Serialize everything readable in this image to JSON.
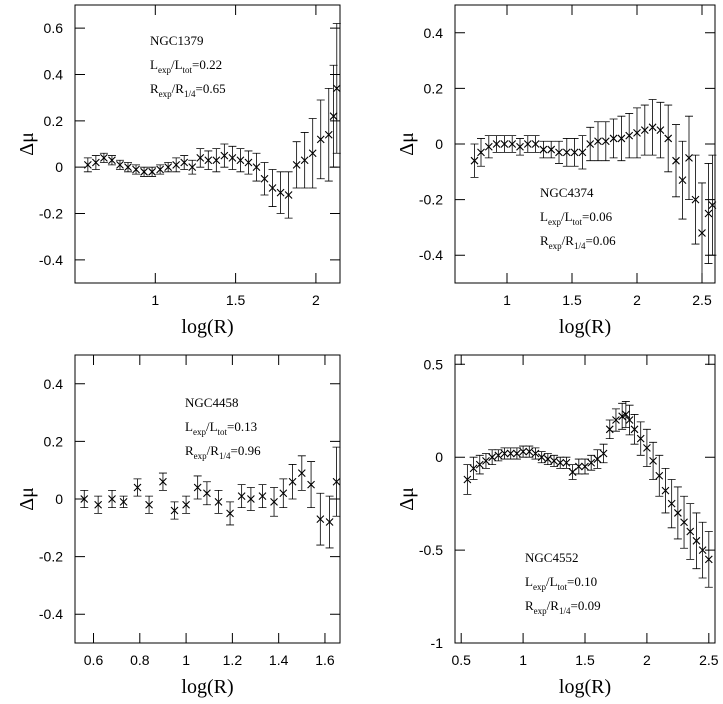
{
  "chart_data": [
    {
      "type": "scatter",
      "xlabel": "log(R)",
      "ylabel": "Δμ",
      "annotations": [
        [
          "NGC1379"
        ],
        [
          "L",
          "exp",
          "/L",
          "tot",
          "=0.22"
        ],
        [
          "R",
          "exp",
          "/R",
          "1/4",
          "=0.65"
        ]
      ],
      "xlim": [
        0.5,
        2.15
      ],
      "ylim": [
        -0.5,
        0.7
      ],
      "xticks": [
        1,
        1.5,
        2
      ],
      "yticks": [
        -0.4,
        -0.2,
        0,
        0.2,
        0.4,
        0.6
      ],
      "x": [
        0.58,
        0.63,
        0.68,
        0.73,
        0.78,
        0.83,
        0.88,
        0.93,
        0.98,
        1.03,
        1.08,
        1.13,
        1.18,
        1.23,
        1.28,
        1.33,
        1.38,
        1.43,
        1.48,
        1.53,
        1.58,
        1.63,
        1.68,
        1.73,
        1.78,
        1.83,
        1.88,
        1.93,
        1.98,
        2.03,
        2.08,
        2.11,
        2.13
      ],
      "series": [
        {
          "color": "#000000",
          "values": [
            0.01,
            0.02,
            0.04,
            0.03,
            0.01,
            0.0,
            -0.01,
            -0.02,
            -0.02,
            -0.01,
            0.0,
            0.01,
            0.02,
            0.0,
            0.04,
            0.03,
            0.03,
            0.05,
            0.04,
            0.03,
            0.02,
            0.0,
            -0.05,
            -0.09,
            -0.11,
            -0.12,
            0.01,
            0.03,
            0.06,
            0.12,
            0.14,
            0.22,
            0.34
          ],
          "errors": [
            0.03,
            0.03,
            0.02,
            0.02,
            0.02,
            0.02,
            0.02,
            0.02,
            0.02,
            0.02,
            0.02,
            0.03,
            0.03,
            0.03,
            0.04,
            0.04,
            0.05,
            0.05,
            0.05,
            0.05,
            0.05,
            0.06,
            0.07,
            0.08,
            0.09,
            0.1,
            0.1,
            0.12,
            0.15,
            0.17,
            0.2,
            0.22,
            0.28
          ]
        }
      ]
    },
    {
      "type": "scatter",
      "xlabel": "log(R)",
      "ylabel": "Δμ",
      "annotations": [
        [
          "NGC4374"
        ],
        [
          "L",
          "exp",
          "/L",
          "tot",
          "=0.06"
        ],
        [
          "R",
          "exp",
          "/R",
          "1/4",
          "=0.06"
        ]
      ],
      "xlim": [
        0.6,
        2.6
      ],
      "ylim": [
        -0.5,
        0.5
      ],
      "xticks": [
        1,
        1.5,
        2,
        2.5
      ],
      "yticks": [
        -0.4,
        -0.2,
        0,
        0.2,
        0.4
      ],
      "x": [
        0.75,
        0.8,
        0.86,
        0.92,
        0.98,
        1.04,
        1.1,
        1.16,
        1.22,
        1.28,
        1.34,
        1.4,
        1.46,
        1.52,
        1.58,
        1.64,
        1.7,
        1.76,
        1.82,
        1.88,
        1.94,
        2.0,
        2.06,
        2.12,
        2.18,
        2.24,
        2.3,
        2.35,
        2.4,
        2.45,
        2.5,
        2.55,
        2.58
      ],
      "series": [
        {
          "color": "#000000",
          "values": [
            -0.06,
            -0.03,
            -0.01,
            0.0,
            0.0,
            0.0,
            -0.01,
            0.0,
            0.0,
            -0.02,
            -0.02,
            -0.03,
            -0.03,
            -0.03,
            -0.03,
            0.0,
            0.01,
            0.01,
            0.02,
            0.02,
            0.03,
            0.04,
            0.05,
            0.06,
            0.05,
            0.02,
            -0.06,
            -0.13,
            -0.05,
            -0.2,
            -0.32,
            -0.25,
            -0.22
          ],
          "errors": [
            0.06,
            0.05,
            0.04,
            0.03,
            0.03,
            0.03,
            0.03,
            0.03,
            0.03,
            0.03,
            0.03,
            0.04,
            0.05,
            0.05,
            0.06,
            0.06,
            0.07,
            0.07,
            0.07,
            0.08,
            0.08,
            0.09,
            0.09,
            0.1,
            0.1,
            0.12,
            0.13,
            0.14,
            0.15,
            0.16,
            0.18,
            0.18,
            0.18
          ]
        }
      ]
    },
    {
      "type": "scatter",
      "xlabel": "log(R)",
      "ylabel": "Δμ",
      "annotations": [
        [
          "NGC4458"
        ],
        [
          "L",
          "exp",
          "/L",
          "tot",
          "=0.13"
        ],
        [
          "R",
          "exp",
          "/R",
          "1/4",
          "=0.96"
        ]
      ],
      "xlim": [
        0.52,
        1.665
      ],
      "ylim": [
        -0.5,
        0.5
      ],
      "xticks": [
        0.6,
        0.8,
        1,
        1.2,
        1.4,
        1.6
      ],
      "yticks": [
        -0.4,
        -0.2,
        0,
        0.2,
        0.4
      ],
      "x": [
        0.56,
        0.62,
        0.68,
        0.73,
        0.79,
        0.84,
        0.9,
        0.95,
        1.0,
        1.05,
        1.09,
        1.14,
        1.19,
        1.24,
        1.28,
        1.33,
        1.38,
        1.42,
        1.46,
        1.5,
        1.54,
        1.58,
        1.62,
        1.65
      ],
      "series": [
        {
          "color": "#000000",
          "values": [
            0.0,
            -0.02,
            0.0,
            -0.01,
            0.04,
            -0.02,
            0.06,
            -0.04,
            -0.02,
            0.04,
            0.02,
            -0.01,
            -0.05,
            0.01,
            0.0,
            0.01,
            -0.01,
            0.02,
            0.06,
            0.09,
            0.05,
            -0.07,
            -0.08,
            0.06
          ],
          "errors": [
            0.03,
            0.03,
            0.03,
            0.02,
            0.03,
            0.03,
            0.03,
            0.03,
            0.03,
            0.04,
            0.04,
            0.04,
            0.04,
            0.04,
            0.04,
            0.04,
            0.05,
            0.05,
            0.06,
            0.06,
            0.08,
            0.09,
            0.09,
            0.12
          ]
        }
      ]
    },
    {
      "type": "scatter",
      "xlabel": "log(R)",
      "ylabel": "Δμ",
      "annotations": [
        [
          "NGC4552"
        ],
        [
          "L",
          "exp",
          "/L",
          "tot",
          "=0.10"
        ],
        [
          "R",
          "exp",
          "/R",
          "1/4",
          "=0.09"
        ]
      ],
      "xlim": [
        0.45,
        2.55
      ],
      "ylim": [
        -1,
        0.55
      ],
      "xticks": [
        0.5,
        1,
        1.5,
        2,
        2.5
      ],
      "yticks": [
        -1,
        -0.5,
        0,
        0.5
      ],
      "x": [
        0.55,
        0.6,
        0.65,
        0.7,
        0.75,
        0.8,
        0.85,
        0.9,
        0.95,
        1.0,
        1.05,
        1.1,
        1.15,
        1.2,
        1.25,
        1.3,
        1.35,
        1.4,
        1.45,
        1.5,
        1.55,
        1.6,
        1.65,
        1.7,
        1.75,
        1.8,
        1.83,
        1.86,
        1.9,
        1.95,
        2.0,
        2.05,
        2.1,
        2.15,
        2.2,
        2.25,
        2.3,
        2.35,
        2.4,
        2.45,
        2.5
      ],
      "series": [
        {
          "color": "#000000",
          "values": [
            -0.12,
            -0.06,
            -0.04,
            -0.02,
            0.0,
            0.01,
            0.02,
            0.02,
            0.02,
            0.03,
            0.03,
            0.02,
            0.0,
            -0.01,
            -0.02,
            -0.03,
            -0.03,
            -0.08,
            -0.05,
            -0.05,
            -0.03,
            -0.01,
            0.02,
            0.15,
            0.2,
            0.22,
            0.23,
            0.2,
            0.15,
            0.1,
            0.05,
            -0.02,
            -0.1,
            -0.18,
            -0.25,
            -0.3,
            -0.35,
            -0.4,
            -0.45,
            -0.5,
            -0.55
          ],
          "errors": [
            0.08,
            0.06,
            0.05,
            0.04,
            0.04,
            0.03,
            0.03,
            0.03,
            0.03,
            0.03,
            0.03,
            0.03,
            0.03,
            0.03,
            0.03,
            0.03,
            0.03,
            0.04,
            0.04,
            0.04,
            0.04,
            0.05,
            0.05,
            0.05,
            0.06,
            0.07,
            0.07,
            0.08,
            0.08,
            0.09,
            0.1,
            0.1,
            0.11,
            0.12,
            0.13,
            0.14,
            0.14,
            0.15,
            0.15,
            0.15,
            0.15
          ]
        }
      ]
    }
  ]
}
